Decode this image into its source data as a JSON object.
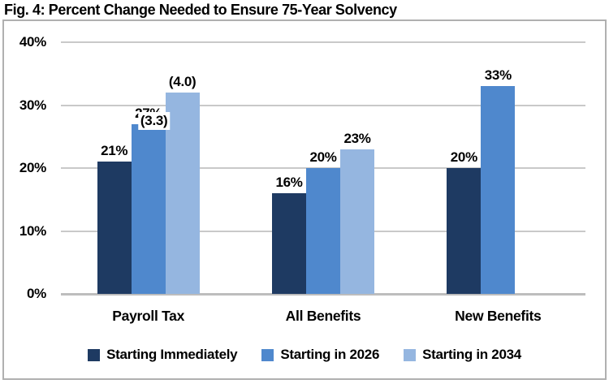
{
  "chart_data": {
    "type": "bar",
    "title": "Fig. 4: Percent Change Needed to Ensure 75-Year Solvency",
    "categories": [
      "Payroll Tax",
      "All Benefits",
      "New Benefits"
    ],
    "y_tick_labels": [
      "0%",
      "10%",
      "20%",
      "30%",
      "40%"
    ],
    "y_tick_values": [
      0,
      10,
      20,
      30,
      40
    ],
    "ylim": [
      0,
      40
    ],
    "grid": true,
    "legend_position": "bottom",
    "colors": {
      "series_dark": "#1E3A62",
      "series_medium": "#4F88CD",
      "series_light": "#95B6E0",
      "gridline": "#C9C9C9",
      "box_border": "#B0B0B0"
    },
    "series": [
      {
        "name": "Starting Immediately",
        "color": "#1E3A62",
        "values": [
          21,
          16,
          20
        ],
        "labels": [
          "21%",
          "16%",
          "20%"
        ],
        "overlay_labels": [
          null,
          null,
          null
        ]
      },
      {
        "name": "Starting in 2026",
        "color": "#4F88CD",
        "values": [
          27,
          20,
          33
        ],
        "labels": [
          "27%",
          "20%",
          "33%"
        ],
        "overlay_labels": [
          "(3.3)",
          null,
          null
        ]
      },
      {
        "name": "Starting in 2034",
        "color": "#95B6E0",
        "values": [
          32,
          23,
          null
        ],
        "labels": [
          "(4.0)",
          "23%",
          null
        ],
        "overlay_labels": [
          null,
          null,
          null
        ]
      }
    ]
  }
}
